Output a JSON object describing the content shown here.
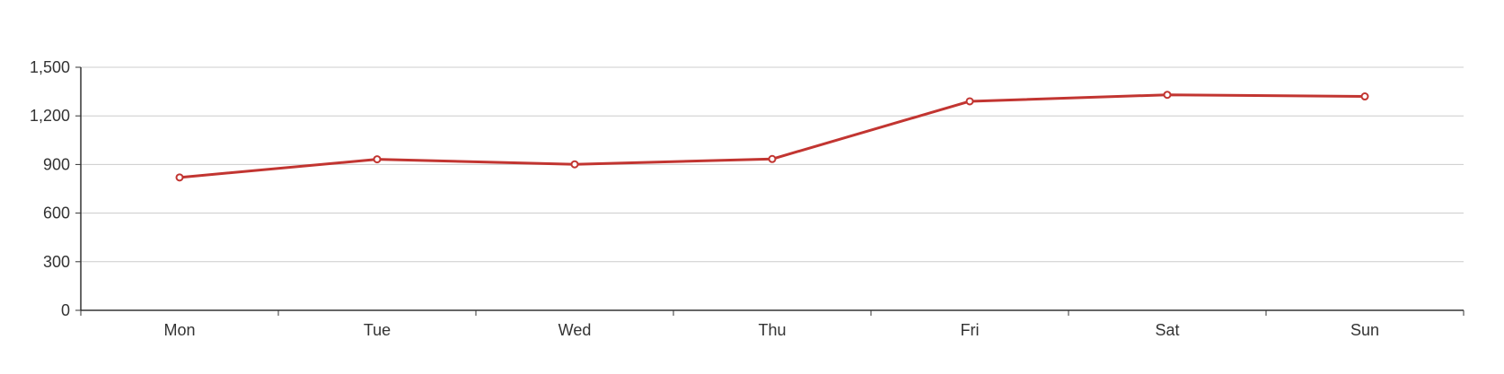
{
  "chart_data": {
    "type": "line",
    "title": "",
    "xlabel": "",
    "ylabel": "",
    "categories": [
      "Mon",
      "Tue",
      "Wed",
      "Thu",
      "Fri",
      "Sat",
      "Sun"
    ],
    "series": [
      {
        "values": [
          820,
          932,
          901,
          934,
          1290,
          1330,
          1320
        ]
      }
    ],
    "ylim": [
      0,
      1500
    ],
    "yticks": [
      0,
      300,
      600,
      900,
      1200,
      1500
    ],
    "ytick_labels": [
      "0",
      "300",
      "600",
      "900",
      "1,200",
      "1,500"
    ],
    "grid": true,
    "legend": "none",
    "colors": {
      "line": "#c23531",
      "grid": "#cccccc",
      "axis": "#333333",
      "text": "#333333",
      "marker_fill": "#ffffff"
    }
  }
}
